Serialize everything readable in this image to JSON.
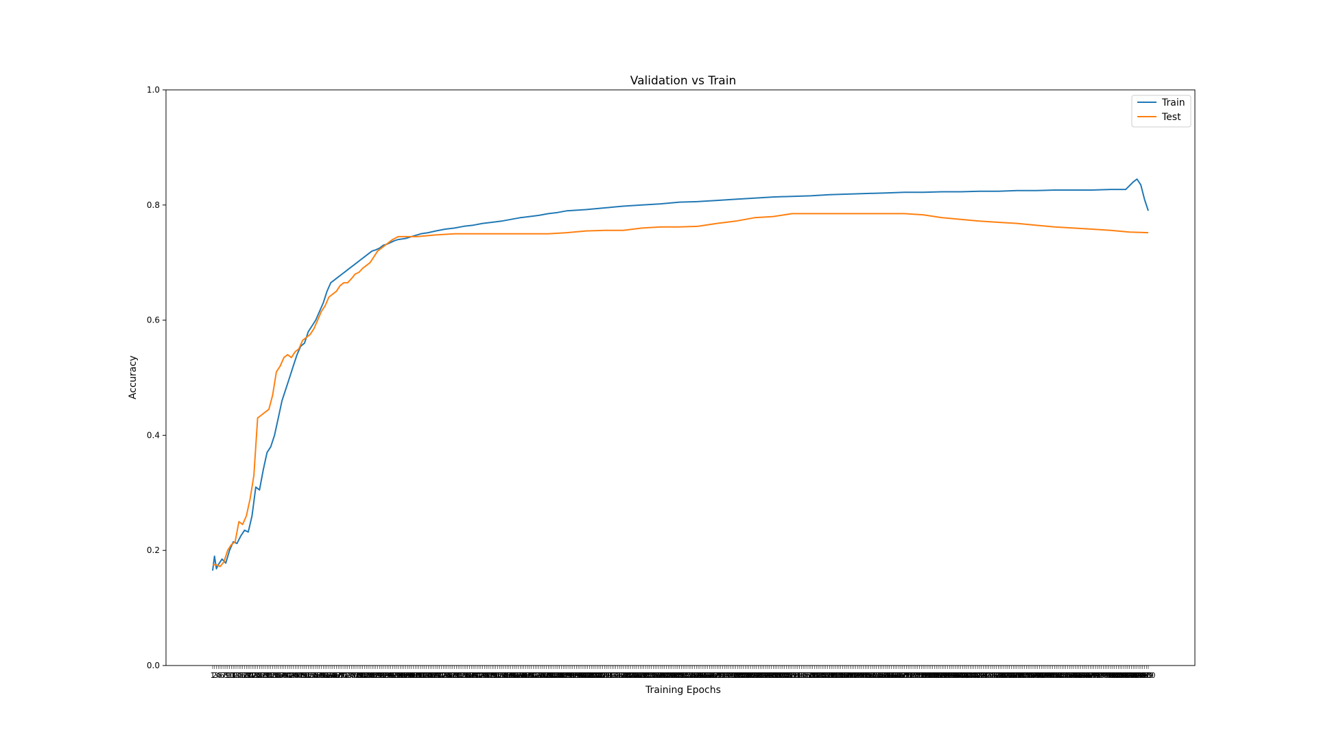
{
  "chart_data": {
    "type": "line",
    "title": "Validation vs Train",
    "xlabel": "Training Epochs",
    "ylabel": "Accuracy",
    "xlim": [
      1,
      500
    ],
    "ylim": [
      0.0,
      1.0
    ],
    "yticks": [
      "0.0",
      "0.2",
      "0.4",
      "0.6",
      "0.8",
      "1.0"
    ],
    "grid": false,
    "legend_position": "top-right",
    "series": [
      {
        "name": "Train",
        "color": "#1f77b4",
        "points": [
          [
            1,
            0.165
          ],
          [
            2,
            0.19
          ],
          [
            3,
            0.168
          ],
          [
            4,
            0.175
          ],
          [
            6,
            0.185
          ],
          [
            8,
            0.178
          ],
          [
            10,
            0.2
          ],
          [
            12,
            0.215
          ],
          [
            14,
            0.212
          ],
          [
            16,
            0.225
          ],
          [
            18,
            0.235
          ],
          [
            20,
            0.232
          ],
          [
            22,
            0.26
          ],
          [
            24,
            0.31
          ],
          [
            26,
            0.305
          ],
          [
            28,
            0.34
          ],
          [
            30,
            0.37
          ],
          [
            32,
            0.38
          ],
          [
            34,
            0.4
          ],
          [
            36,
            0.43
          ],
          [
            38,
            0.46
          ],
          [
            40,
            0.48
          ],
          [
            42,
            0.5
          ],
          [
            44,
            0.52
          ],
          [
            46,
            0.54
          ],
          [
            48,
            0.555
          ],
          [
            50,
            0.56
          ],
          [
            52,
            0.58
          ],
          [
            54,
            0.59
          ],
          [
            56,
            0.6
          ],
          [
            58,
            0.615
          ],
          [
            60,
            0.63
          ],
          [
            62,
            0.65
          ],
          [
            64,
            0.665
          ],
          [
            66,
            0.67
          ],
          [
            68,
            0.675
          ],
          [
            70,
            0.68
          ],
          [
            72,
            0.685
          ],
          [
            74,
            0.69
          ],
          [
            76,
            0.695
          ],
          [
            78,
            0.7
          ],
          [
            80,
            0.705
          ],
          [
            82,
            0.71
          ],
          [
            84,
            0.715
          ],
          [
            86,
            0.72
          ],
          [
            88,
            0.722
          ],
          [
            90,
            0.725
          ],
          [
            92,
            0.73
          ],
          [
            94,
            0.732
          ],
          [
            96,
            0.735
          ],
          [
            98,
            0.738
          ],
          [
            100,
            0.74
          ],
          [
            104,
            0.742
          ],
          [
            108,
            0.746
          ],
          [
            112,
            0.75
          ],
          [
            116,
            0.752
          ],
          [
            120,
            0.755
          ],
          [
            125,
            0.758
          ],
          [
            130,
            0.76
          ],
          [
            135,
            0.763
          ],
          [
            140,
            0.765
          ],
          [
            145,
            0.768
          ],
          [
            150,
            0.77
          ],
          [
            155,
            0.772
          ],
          [
            160,
            0.775
          ],
          [
            165,
            0.778
          ],
          [
            170,
            0.78
          ],
          [
            175,
            0.782
          ],
          [
            180,
            0.785
          ],
          [
            185,
            0.787
          ],
          [
            190,
            0.79
          ],
          [
            200,
            0.792
          ],
          [
            210,
            0.795
          ],
          [
            220,
            0.798
          ],
          [
            230,
            0.8
          ],
          [
            240,
            0.802
          ],
          [
            250,
            0.805
          ],
          [
            260,
            0.806
          ],
          [
            270,
            0.808
          ],
          [
            280,
            0.81
          ],
          [
            290,
            0.812
          ],
          [
            300,
            0.814
          ],
          [
            310,
            0.815
          ],
          [
            320,
            0.816
          ],
          [
            330,
            0.818
          ],
          [
            340,
            0.819
          ],
          [
            350,
            0.82
          ],
          [
            360,
            0.821
          ],
          [
            370,
            0.822
          ],
          [
            380,
            0.822
          ],
          [
            390,
            0.823
          ],
          [
            400,
            0.823
          ],
          [
            410,
            0.824
          ],
          [
            420,
            0.824
          ],
          [
            430,
            0.825
          ],
          [
            440,
            0.825
          ],
          [
            450,
            0.826
          ],
          [
            460,
            0.826
          ],
          [
            470,
            0.826
          ],
          [
            480,
            0.827
          ],
          [
            488,
            0.827
          ],
          [
            492,
            0.84
          ],
          [
            494,
            0.845
          ],
          [
            496,
            0.835
          ],
          [
            498,
            0.81
          ],
          [
            500,
            0.79
          ]
        ]
      },
      {
        "name": "Test",
        "color": "#ff7f0e",
        "points": [
          [
            1,
            0.175
          ],
          [
            3,
            0.175
          ],
          [
            5,
            0.172
          ],
          [
            7,
            0.18
          ],
          [
            9,
            0.2
          ],
          [
            11,
            0.21
          ],
          [
            13,
            0.215
          ],
          [
            15,
            0.25
          ],
          [
            17,
            0.245
          ],
          [
            19,
            0.26
          ],
          [
            21,
            0.29
          ],
          [
            23,
            0.33
          ],
          [
            25,
            0.43
          ],
          [
            27,
            0.435
          ],
          [
            29,
            0.44
          ],
          [
            31,
            0.445
          ],
          [
            33,
            0.47
          ],
          [
            35,
            0.51
          ],
          [
            37,
            0.52
          ],
          [
            39,
            0.535
          ],
          [
            41,
            0.54
          ],
          [
            43,
            0.535
          ],
          [
            45,
            0.545
          ],
          [
            47,
            0.55
          ],
          [
            49,
            0.565
          ],
          [
            51,
            0.57
          ],
          [
            53,
            0.575
          ],
          [
            55,
            0.585
          ],
          [
            57,
            0.6
          ],
          [
            59,
            0.615
          ],
          [
            61,
            0.625
          ],
          [
            63,
            0.64
          ],
          [
            65,
            0.645
          ],
          [
            67,
            0.65
          ],
          [
            69,
            0.66
          ],
          [
            71,
            0.665
          ],
          [
            73,
            0.665
          ],
          [
            75,
            0.672
          ],
          [
            77,
            0.68
          ],
          [
            79,
            0.683
          ],
          [
            81,
            0.69
          ],
          [
            83,
            0.695
          ],
          [
            85,
            0.7
          ],
          [
            87,
            0.71
          ],
          [
            89,
            0.72
          ],
          [
            91,
            0.725
          ],
          [
            93,
            0.73
          ],
          [
            95,
            0.735
          ],
          [
            97,
            0.74
          ],
          [
            100,
            0.745
          ],
          [
            110,
            0.745
          ],
          [
            120,
            0.748
          ],
          [
            130,
            0.75
          ],
          [
            140,
            0.75
          ],
          [
            150,
            0.75
          ],
          [
            160,
            0.75
          ],
          [
            170,
            0.75
          ],
          [
            180,
            0.75
          ],
          [
            190,
            0.752
          ],
          [
            200,
            0.755
          ],
          [
            210,
            0.756
          ],
          [
            220,
            0.756
          ],
          [
            230,
            0.76
          ],
          [
            240,
            0.762
          ],
          [
            250,
            0.762
          ],
          [
            260,
            0.763
          ],
          [
            270,
            0.768
          ],
          [
            280,
            0.772
          ],
          [
            290,
            0.778
          ],
          [
            300,
            0.78
          ],
          [
            310,
            0.785
          ],
          [
            320,
            0.785
          ],
          [
            330,
            0.785
          ],
          [
            340,
            0.785
          ],
          [
            350,
            0.785
          ],
          [
            360,
            0.785
          ],
          [
            370,
            0.785
          ],
          [
            380,
            0.783
          ],
          [
            390,
            0.778
          ],
          [
            400,
            0.775
          ],
          [
            410,
            0.772
          ],
          [
            420,
            0.77
          ],
          [
            430,
            0.768
          ],
          [
            440,
            0.765
          ],
          [
            450,
            0.762
          ],
          [
            460,
            0.76
          ],
          [
            470,
            0.758
          ],
          [
            480,
            0.756
          ],
          [
            490,
            0.753
          ],
          [
            500,
            0.752
          ]
        ]
      }
    ]
  }
}
